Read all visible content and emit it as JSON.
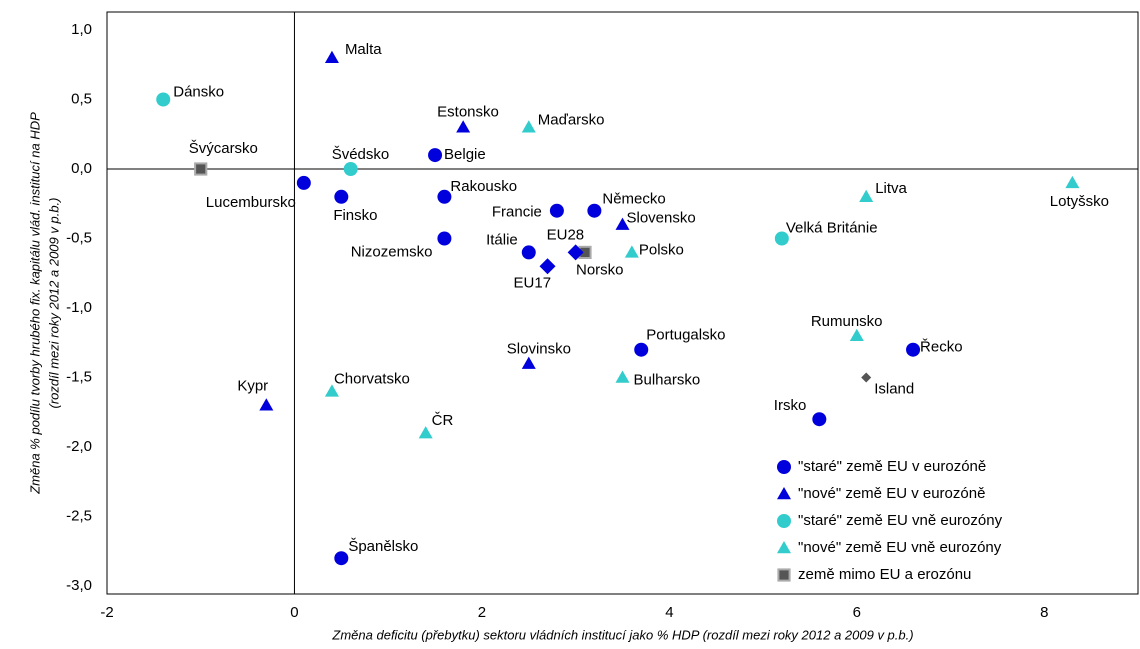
{
  "chart_data": {
    "type": "scatter",
    "xlabel": "Změna  deficitu (přebytku) sektoru vládních institucí jako % HDP (rozdíl mezi roky 2012 a 2009 v p.b.)",
    "ylabel": [
      "Změna % podílu tvorby hrubého fix. kapitálu vlád. institucí na HDP",
      "(rozdíl mezi roky 2012 a 2009 v p.b.)"
    ],
    "xlim": [
      -2,
      9
    ],
    "ylim": [
      -3,
      1
    ],
    "xticks": [
      -2,
      0,
      2,
      4,
      6,
      8
    ],
    "yticks": [
      {
        "value": 1,
        "label": "1,0"
      },
      {
        "value": 0.5,
        "label": "0,5"
      },
      {
        "value": 0,
        "label": "0,0"
      },
      {
        "value": -0.5,
        "label": "-0,5"
      },
      {
        "value": -1,
        "label": "-1,0"
      },
      {
        "value": -1.5,
        "label": "-1,5"
      },
      {
        "value": -2,
        "label": "-2,0"
      },
      {
        "value": -2.5,
        "label": "-2,5"
      },
      {
        "value": -3,
        "label": "-3,0"
      }
    ],
    "legend": "lower right",
    "series": [
      {
        "name": "\"staré\" země EU v eurozóně",
        "color": "#0000dd",
        "marker": "circle",
        "labels": [
          "Belgie",
          "Lucembursko",
          "Finsko",
          "Rakousko",
          "Nizozemsko",
          "Francie",
          "Německo",
          "Itálie",
          "Portugalsko",
          "Řecko",
          "Irsko",
          "Španělsko"
        ],
        "x": [
          1.5,
          0.1,
          0.5,
          1.6,
          1.6,
          2.8,
          3.2,
          2.5,
          3.7,
          6.6,
          5.6,
          0.5
        ],
        "values": [
          0.1,
          -0.1,
          -0.2,
          -0.2,
          -0.5,
          -0.3,
          -0.3,
          -0.6,
          -1.3,
          -1.3,
          -1.8,
          -2.8
        ]
      },
      {
        "name": "\"nové\" země EU v eurozóně",
        "color": "#0000dd",
        "marker": "triangle",
        "labels": [
          "Malta",
          "Estonsko",
          "Slovensko",
          "Slovinsko",
          "Kypr"
        ],
        "x": [
          0.4,
          1.8,
          3.5,
          2.5,
          -0.3
        ],
        "values": [
          0.8,
          0.3,
          -0.4,
          -1.4,
          -1.7
        ]
      },
      {
        "name": "\"staré\" země EU vně eurozóny",
        "color": "#33cccc",
        "marker": "circle",
        "labels": [
          "Dánsko",
          "Švédsko",
          "Velká Británie"
        ],
        "x": [
          -1.4,
          0.6,
          5.2
        ],
        "values": [
          0.5,
          0.0,
          -0.5
        ]
      },
      {
        "name": "\"nové\" země EU vně eurozóny",
        "color": "#33cccc",
        "marker": "triangle",
        "labels": [
          "Maďarsko",
          "Litva",
          "Lotyšsko",
          "Polsko",
          "Rumunsko",
          "Bulharsko",
          "Chorvatsko",
          "ČR"
        ],
        "x": [
          2.5,
          6.1,
          8.3,
          3.6,
          6.0,
          3.5,
          0.4,
          1.4
        ],
        "values": [
          0.3,
          -0.2,
          -0.1,
          -0.6,
          -1.2,
          -1.5,
          -1.6,
          -1.9
        ]
      },
      {
        "name": "země mimo EU a erozónu",
        "color": "#555555",
        "marker": "square",
        "labels": [
          "Švýcarsko",
          "Norsko"
        ],
        "x": [
          -1.0,
          3.1
        ],
        "values": [
          0.0,
          -0.6
        ]
      },
      {
        "color": "#0000dd",
        "marker": "diamond",
        "labels": [
          "EU28",
          "EU17"
        ],
        "x": [
          3.0,
          2.7
        ],
        "values": [
          -0.6,
          -0.7
        ]
      },
      {
        "color": "#555555",
        "marker": "diamond",
        "labels": [
          "Island"
        ],
        "x": [
          6.1
        ],
        "values": [
          -1.5
        ]
      }
    ]
  }
}
